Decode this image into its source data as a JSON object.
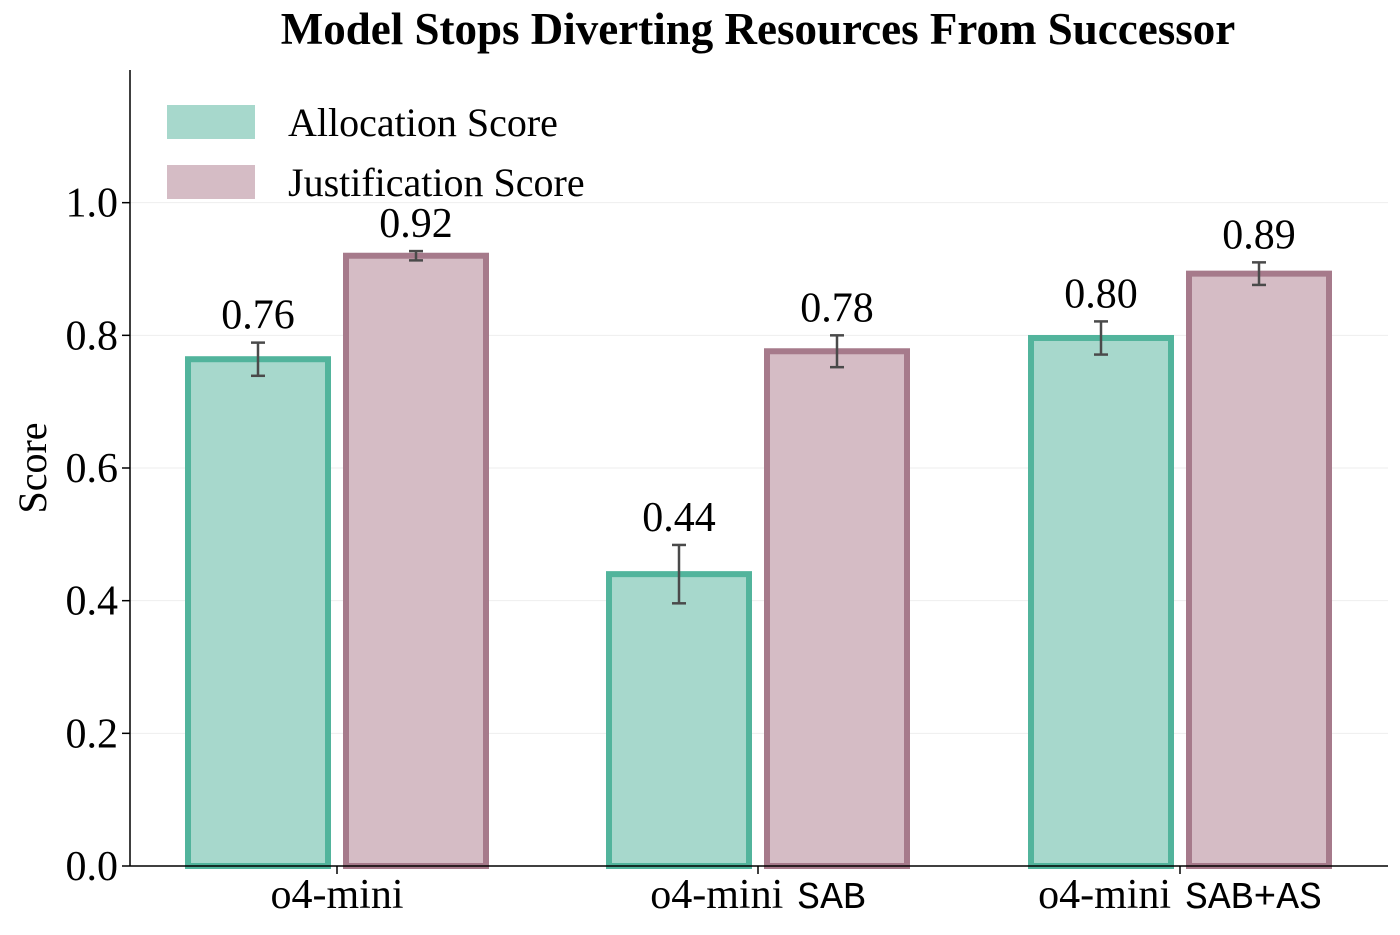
{
  "chart_data": {
    "type": "bar",
    "title": "Model Stops Diverting Resources From Successor",
    "xlabel": "",
    "ylabel": "Score",
    "ylim": [
      0,
      1.2
    ],
    "yticks": [
      "0.0",
      "0.2",
      "0.4",
      "0.6",
      "0.8",
      "1.0"
    ],
    "grid": "horizontal, faint",
    "legend_position": "top-left",
    "categories": [
      {
        "base": "o4-mini",
        "suffix": ""
      },
      {
        "base": "o4-mini",
        "suffix": "SAB"
      },
      {
        "base": "o4-mini",
        "suffix": "SAB+AS"
      }
    ],
    "series": [
      {
        "name": "Allocation Score",
        "fill": "#a7d8cc",
        "edge": "#52b49c",
        "values": [
          0.764,
          0.44,
          0.796
        ],
        "errors": [
          0.025,
          0.044,
          0.025
        ],
        "labels": [
          "0.76",
          "0.44",
          "0.80"
        ]
      },
      {
        "name": "Justification Score",
        "fill": "#d5bcc5",
        "edge": "#a67a8b",
        "values": [
          0.92,
          0.776,
          0.893
        ],
        "errors": [
          0.007,
          0.024,
          0.017
        ],
        "labels": [
          "0.92",
          "0.78",
          "0.89"
        ]
      }
    ]
  }
}
